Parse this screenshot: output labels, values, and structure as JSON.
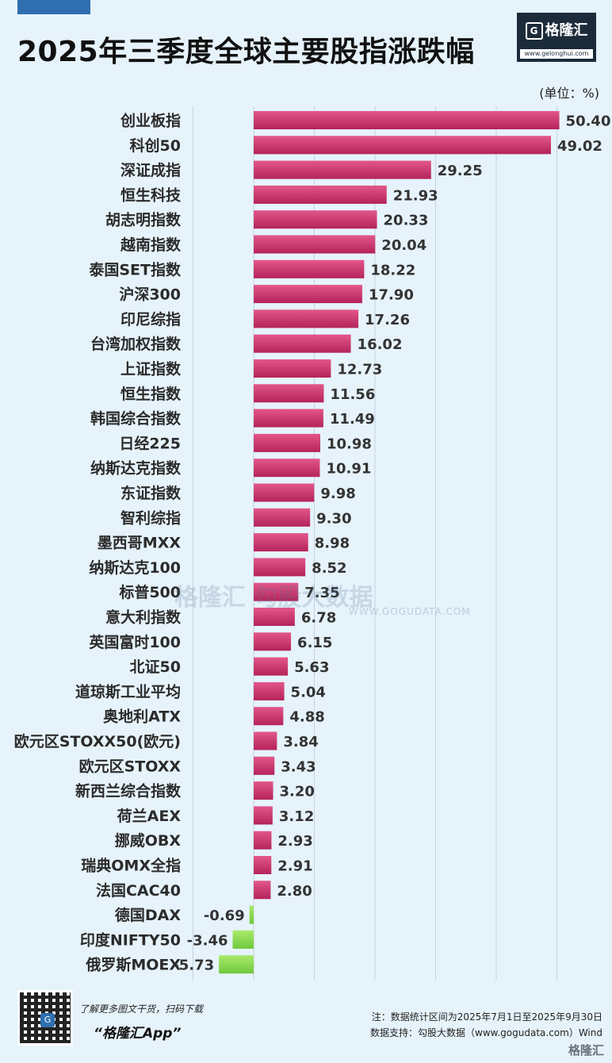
{
  "title": "2025年三季度全球主要股指涨跌幅",
  "brand": {
    "logo": "格隆汇",
    "logo_mark": "G",
    "url": "www.gelonghui.com"
  },
  "watermark": {
    "text": "格隆汇  勾股大数据",
    "url": "WWW.GOGUDATA.COM"
  },
  "footer": {
    "promo": "了解更多图文干货，扫码下载",
    "app": "“格隆汇App”",
    "note": "注：数据统计区间为2025年7月1日至2025年9月30日",
    "source": "数据支持：勾股大数据（www.gogudata.com）Wind",
    "corner_logo": "格隆汇",
    "qr_center": "G"
  },
  "colors": {
    "positive_top": "#e3578a",
    "positive_bottom": "#b4235a",
    "negative_top": "#a9ea6c",
    "negative_bottom": "#6fc83c",
    "grid": "#c7d3dd"
  },
  "chart_data": {
    "type": "bar",
    "orientation": "horizontal",
    "unit_label": "(单位：%)",
    "xlim": [
      -6,
      55
    ],
    "grid": true,
    "categories": [
      "创业板指",
      "科创50",
      "深证成指",
      "恒生科技",
      "胡志明指数",
      "越南指数",
      "泰国SET指数",
      "沪深300",
      "印尼综指",
      "台湾加权指数",
      "上证指数",
      "恒生指数",
      "韩国综合指数",
      "日经225",
      "纳斯达克指数",
      "东证指数",
      "智利综指",
      "墨西哥MXX",
      "纳斯达克100",
      "标普500",
      "意大利指数",
      "英国富时100",
      "北证50",
      "道琼斯工业平均",
      "奥地利ATX",
      "欧元区STOXX50(欧元)",
      "欧元区STOXX",
      "新西兰综合指数",
      "荷兰AEX",
      "挪威OBX",
      "瑞典OMX全指",
      "法国CAC40",
      "德国DAX",
      "印度NIFTY50",
      "俄罗斯MOEX"
    ],
    "values": [
      50.4,
      49.02,
      29.25,
      21.93,
      20.33,
      20.04,
      18.22,
      17.9,
      17.26,
      16.02,
      12.73,
      11.56,
      11.49,
      10.98,
      10.91,
      9.98,
      9.3,
      8.98,
      8.52,
      7.35,
      6.78,
      6.15,
      5.63,
      5.04,
      4.88,
      3.84,
      3.43,
      3.2,
      3.12,
      2.93,
      2.91,
      2.8,
      -0.69,
      -3.46,
      -5.73
    ],
    "value_labels": [
      "50.40",
      "49.02",
      "29.25",
      "21.93",
      "20.33",
      "20.04",
      "18.22",
      "17.90",
      "17.26",
      "16.02",
      "12.73",
      "11.56",
      "11.49",
      "10.98",
      "10.91",
      "9.98",
      "9.30",
      "8.98",
      "8.52",
      "7.35",
      "6.78",
      "6.15",
      "5.63",
      "5.04",
      "4.88",
      "3.84",
      "3.43",
      "3.20",
      "3.12",
      "2.93",
      "2.91",
      "2.80",
      "-0.69",
      "-3.46",
      "-5.73"
    ]
  }
}
